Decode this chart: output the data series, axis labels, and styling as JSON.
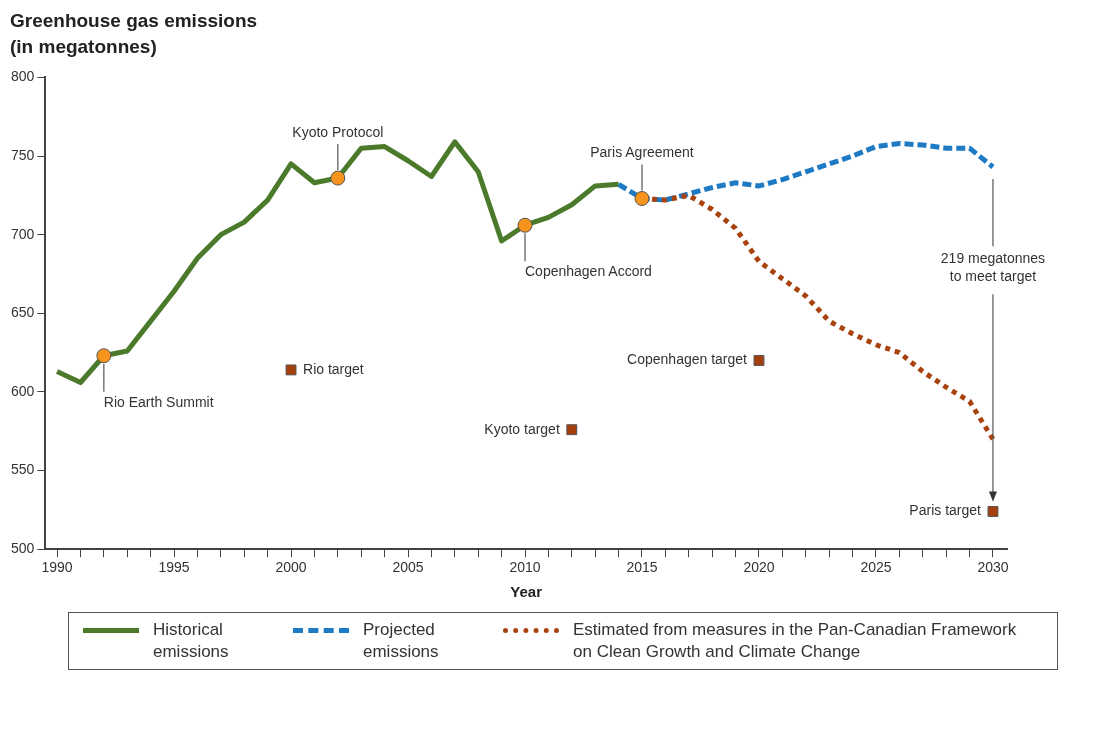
{
  "chart_data": {
    "type": "line",
    "title": "Greenhouse gas emissions (in megatonnes)",
    "xlabel": "Year",
    "xlim": [
      1989.5,
      2030.6
    ],
    "xticks": [
      1990,
      {
        "value": 1991,
        "label": null
      },
      {
        "value": 1992,
        "label": null
      },
      {
        "value": 1993,
        "label": null
      },
      {
        "value": 1994,
        "label": null
      },
      1995,
      {
        "value": 1996,
        "label": null
      },
      {
        "value": 1997,
        "label": null
      },
      {
        "value": 1998,
        "label": null
      },
      {
        "value": 1999,
        "label": null
      },
      2000,
      {
        "value": 2001,
        "label": null
      },
      {
        "value": 2002,
        "label": null
      },
      {
        "value": 2003,
        "label": null
      },
      {
        "value": 2004,
        "label": null
      },
      2005,
      {
        "value": 2006,
        "label": null
      },
      {
        "value": 2007,
        "label": null
      },
      {
        "value": 2008,
        "label": null
      },
      {
        "value": 2009,
        "label": null
      },
      2010,
      {
        "value": 2011,
        "label": null
      },
      {
        "value": 2012,
        "label": null
      },
      {
        "value": 2013,
        "label": null
      },
      {
        "value": 2014,
        "label": null
      },
      2015,
      {
        "value": 2016,
        "label": null
      },
      {
        "value": 2017,
        "label": null
      },
      {
        "value": 2018,
        "label": null
      },
      {
        "value": 2019,
        "label": null
      },
      2020,
      {
        "value": 2021,
        "label": null
      },
      {
        "value": 2022,
        "label": null
      },
      {
        "value": 2023,
        "label": null
      },
      {
        "value": 2024,
        "label": null
      },
      2025,
      {
        "value": 2026,
        "label": null
      },
      {
        "value": 2027,
        "label": null
      },
      {
        "value": 2028,
        "label": null
      },
      {
        "value": 2029,
        "label": null
      },
      2030
    ],
    "ylim": [
      500,
      800
    ],
    "yticks": [
      500,
      550,
      600,
      650,
      700,
      750,
      800
    ],
    "grid": false,
    "legend": "bottom",
    "series": [
      {
        "name": "Historical emissions",
        "type": "line",
        "color": "#4a7a2a",
        "line_style": "solid",
        "marker": "none",
        "x": [
          1990,
          1991,
          1992,
          1993,
          1994,
          1995,
          1996,
          1997,
          1998,
          1999,
          2000,
          2001,
          2002,
          2003,
          2004,
          2005,
          2006,
          2007,
          2008,
          2009,
          2010,
          2011,
          2012,
          2013,
          2014
        ],
        "values": [
          613,
          606,
          623,
          626,
          645,
          664,
          685,
          700,
          708,
          722,
          745,
          733,
          736,
          755,
          756,
          747,
          737,
          759,
          740,
          696,
          706,
          711,
          719,
          731,
          732
        ]
      },
      {
        "name": "Projected emissions",
        "type": "line",
        "color": "#1f7ac4",
        "line_style": "dashed",
        "marker": "none",
        "x": [
          2014,
          2015,
          2016,
          2017,
          2018,
          2019,
          2020,
          2021,
          2022,
          2023,
          2024,
          2025,
          2026,
          2027,
          2028,
          2029,
          2030
        ],
        "values": [
          732,
          723,
          722,
          726,
          730,
          733,
          731,
          735,
          740,
          745,
          750,
          756,
          758,
          757,
          755,
          755,
          743
        ]
      },
      {
        "name": "Estimated from measures in the Pan-Canadian Framework on Clean Growth and Climate Change",
        "type": "line",
        "color": "#a8430f",
        "line_style": "dotted",
        "marker": "none",
        "x": [
          2015,
          2016,
          2017,
          2018,
          2019,
          2020,
          2021,
          2022,
          2023,
          2024,
          2025,
          2026,
          2027,
          2028,
          2029,
          2030
        ],
        "values": [
          723,
          722,
          725,
          716,
          704,
          683,
          672,
          661,
          645,
          637,
          630,
          625,
          613,
          603,
          594,
          570
        ]
      },
      {
        "type": "scatter",
        "color": "#f7941d",
        "marker": "circle",
        "x": [
          1992,
          2002,
          2010,
          2015
        ],
        "values": [
          623,
          736,
          706,
          723
        ]
      },
      {
        "type": "scatter",
        "color": "#a3400e",
        "marker": "square",
        "x": [
          2000,
          2012,
          2020,
          2030
        ],
        "values": [
          614,
          576,
          620,
          524
        ]
      }
    ],
    "annotations": [
      {
        "text": "Rio Earth Summit",
        "x": 1992,
        "y": 623
      },
      {
        "text": "Kyoto Protocol",
        "x": 2002,
        "y": 736
      },
      {
        "text": "Copenhagen Accord",
        "x": 2010,
        "y": 706
      },
      {
        "text": "Paris Agreement",
        "x": 2015,
        "y": 723
      },
      {
        "text": "Rio target",
        "x": 2000,
        "y": 614
      },
      {
        "text": "Kyoto target",
        "x": 2012,
        "y": 576
      },
      {
        "text": "Copenhagen target",
        "x": 2020,
        "y": 620
      },
      {
        "text": "Paris target",
        "x": 2030,
        "y": 524
      },
      "219 megatonnes to meet target"
    ]
  }
}
